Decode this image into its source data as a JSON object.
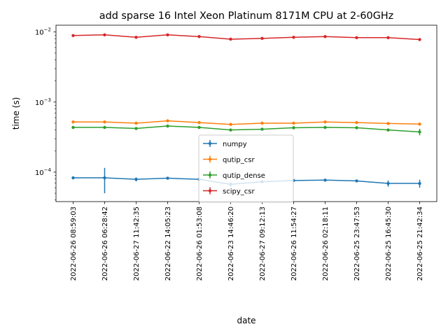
{
  "chart_data": {
    "type": "line",
    "title": "add sparse 16 Intel Xeon Platinum 8171M CPU at 2-60GHz",
    "xlabel": "date",
    "ylabel": "time (s)",
    "yscale": "log",
    "ylim": [
      3.8e-05,
      0.0125
    ],
    "yticks": [
      {
        "value": 0.0001,
        "base": "10",
        "exp": "−4"
      },
      {
        "value": 0.001,
        "base": "10",
        "exp": "−3"
      },
      {
        "value": 0.01,
        "base": "10",
        "exp": "−2"
      }
    ],
    "grid": false,
    "legend": "lower-center",
    "categories": [
      "2022-06-26 08:59:03",
      "2022-06-26 06:28:42",
      "2022-06-27 11:42:35",
      "2022-06-22 14:05:23",
      "2022-06-26 01:53:08",
      "2022-06-23 14:46:20",
      "2022-06-27 09:12:13",
      "2022-06-26 11:54:27",
      "2022-06-26 02:18:11",
      "2022-06-25 23:47:53",
      "2022-06-25 16:45:30",
      "2022-06-25 21:42:34"
    ],
    "series": [
      {
        "name": "numpy",
        "color": "#1f77b4",
        "values": [
          8.3e-05,
          8.3e-05,
          7.9e-05,
          8.2e-05,
          7.9e-05,
          6.7e-05,
          7.3e-05,
          7.6e-05,
          7.7e-05,
          7.5e-05,
          6.9e-05,
          6.9e-05
        ],
        "err_lo": [
          8e-05,
          5e-05,
          7.4e-05,
          7.9e-05,
          7.6e-05,
          6.2e-05,
          7e-05,
          7.3e-05,
          7.4e-05,
          7.2e-05,
          6.2e-05,
          6e-05
        ],
        "err_hi": [
          8.6e-05,
          0.000115,
          8.4e-05,
          8.5e-05,
          8.2e-05,
          7.2e-05,
          7.6e-05,
          7.9e-05,
          8e-05,
          7.8e-05,
          7.6e-05,
          7.8e-05
        ]
      },
      {
        "name": "qutip_csr",
        "color": "#ff7f0e",
        "values": [
          0.00052,
          0.00052,
          0.0005,
          0.00054,
          0.00051,
          0.00048,
          0.0005,
          0.0005,
          0.00052,
          0.00051,
          0.000495,
          0.000485
        ],
        "err_lo": [
          0.00051,
          0.00051,
          0.00049,
          0.00053,
          0.0005,
          0.00047,
          0.00049,
          0.00049,
          0.00051,
          0.0005,
          0.000485,
          0.00046
        ],
        "err_hi": [
          0.00053,
          0.00053,
          0.00051,
          0.00056,
          0.00052,
          0.00049,
          0.00051,
          0.00051,
          0.00053,
          0.00052,
          0.000505,
          0.00051
        ]
      },
      {
        "name": "qutip_dense",
        "color": "#2ca02c",
        "values": [
          0.000435,
          0.000435,
          0.00042,
          0.000455,
          0.000435,
          0.0004,
          0.00041,
          0.00043,
          0.000435,
          0.00043,
          0.0004,
          0.000375
        ],
        "err_lo": [
          0.000425,
          0.000425,
          0.00041,
          0.000445,
          0.000425,
          0.000385,
          0.0004,
          0.00042,
          0.000425,
          0.00042,
          0.00038,
          0.000335
        ],
        "err_hi": [
          0.000445,
          0.000445,
          0.00043,
          0.00047,
          0.000445,
          0.000415,
          0.00042,
          0.00044,
          0.000445,
          0.00044,
          0.00042,
          0.000415
        ]
      },
      {
        "name": "scipy_csr",
        "color": "#d62728",
        "values": [
          0.0089,
          0.0091,
          0.0084,
          0.0091,
          0.0086,
          0.0079,
          0.0081,
          0.0084,
          0.0086,
          0.0083,
          0.0083,
          0.0078
        ],
        "err_lo": [
          0.0087,
          0.0089,
          0.0082,
          0.0089,
          0.0084,
          0.0077,
          0.0079,
          0.0082,
          0.0084,
          0.0081,
          0.0081,
          0.0076
        ],
        "err_hi": [
          0.0091,
          0.0093,
          0.0086,
          0.0093,
          0.0088,
          0.0081,
          0.0083,
          0.0086,
          0.0088,
          0.0085,
          0.0085,
          0.008
        ]
      }
    ]
  }
}
